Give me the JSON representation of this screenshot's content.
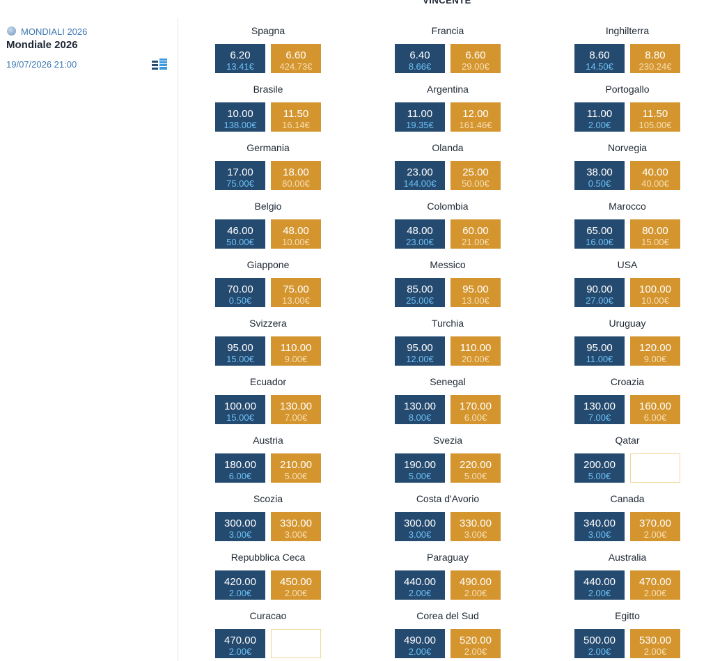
{
  "header": {
    "title": "VINCENTE"
  },
  "sidebar": {
    "competition": "MONDIALI 2026",
    "event": "Mondiale 2026",
    "datetime": "19/07/2026 21:00"
  },
  "runners": [
    {
      "name": "Spagna",
      "back": {
        "odds": "6.20",
        "amount": "13.41€"
      },
      "lay": {
        "odds": "6.60",
        "amount": "424.73€"
      }
    },
    {
      "name": "Francia",
      "back": {
        "odds": "6.40",
        "amount": "8.66€"
      },
      "lay": {
        "odds": "6.60",
        "amount": "29.00€"
      }
    },
    {
      "name": "Inghilterra",
      "back": {
        "odds": "8.60",
        "amount": "14.50€"
      },
      "lay": {
        "odds": "8.80",
        "amount": "230.24€"
      }
    },
    {
      "name": "Brasile",
      "back": {
        "odds": "10.00",
        "amount": "138.00€"
      },
      "lay": {
        "odds": "11.50",
        "amount": "16.14€"
      }
    },
    {
      "name": "Argentina",
      "back": {
        "odds": "11.00",
        "amount": "19.35€"
      },
      "lay": {
        "odds": "12.00",
        "amount": "161.46€"
      }
    },
    {
      "name": "Portogallo",
      "back": {
        "odds": "11.00",
        "amount": "2.00€"
      },
      "lay": {
        "odds": "11.50",
        "amount": "105.00€"
      }
    },
    {
      "name": "Germania",
      "back": {
        "odds": "17.00",
        "amount": "75.00€"
      },
      "lay": {
        "odds": "18.00",
        "amount": "80.00€"
      }
    },
    {
      "name": "Olanda",
      "back": {
        "odds": "23.00",
        "amount": "144.00€"
      },
      "lay": {
        "odds": "25.00",
        "amount": "50.00€"
      }
    },
    {
      "name": "Norvegia",
      "back": {
        "odds": "38.00",
        "amount": "0.50€"
      },
      "lay": {
        "odds": "40.00",
        "amount": "40.00€"
      }
    },
    {
      "name": "Belgio",
      "back": {
        "odds": "46.00",
        "amount": "50.00€"
      },
      "lay": {
        "odds": "48.00",
        "amount": "10.00€"
      }
    },
    {
      "name": "Colombia",
      "back": {
        "odds": "48.00",
        "amount": "23.00€"
      },
      "lay": {
        "odds": "60.00",
        "amount": "21.00€"
      }
    },
    {
      "name": "Marocco",
      "back": {
        "odds": "65.00",
        "amount": "16.00€"
      },
      "lay": {
        "odds": "80.00",
        "amount": "15.00€"
      }
    },
    {
      "name": "Giappone",
      "back": {
        "odds": "70.00",
        "amount": "0.50€"
      },
      "lay": {
        "odds": "75.00",
        "amount": "13.00€"
      }
    },
    {
      "name": "Messico",
      "back": {
        "odds": "85.00",
        "amount": "25.00€"
      },
      "lay": {
        "odds": "95.00",
        "amount": "13.00€"
      }
    },
    {
      "name": "USA",
      "back": {
        "odds": "90.00",
        "amount": "27.00€"
      },
      "lay": {
        "odds": "100.00",
        "amount": "10.00€"
      }
    },
    {
      "name": "Svizzera",
      "back": {
        "odds": "95.00",
        "amount": "15.00€"
      },
      "lay": {
        "odds": "110.00",
        "amount": "9.00€"
      }
    },
    {
      "name": "Turchia",
      "back": {
        "odds": "95.00",
        "amount": "12.00€"
      },
      "lay": {
        "odds": "110.00",
        "amount": "20.00€"
      }
    },
    {
      "name": "Uruguay",
      "back": {
        "odds": "95.00",
        "amount": "11.00€"
      },
      "lay": {
        "odds": "120.00",
        "amount": "9.00€"
      }
    },
    {
      "name": "Ecuador",
      "back": {
        "odds": "100.00",
        "amount": "15.00€"
      },
      "lay": {
        "odds": "130.00",
        "amount": "7.00€"
      }
    },
    {
      "name": "Senegal",
      "back": {
        "odds": "130.00",
        "amount": "8.00€"
      },
      "lay": {
        "odds": "170.00",
        "amount": "6.00€"
      }
    },
    {
      "name": "Croazia",
      "back": {
        "odds": "130.00",
        "amount": "7.00€"
      },
      "lay": {
        "odds": "160.00",
        "amount": "6.00€"
      }
    },
    {
      "name": "Austria",
      "back": {
        "odds": "180.00",
        "amount": "6.00€"
      },
      "lay": {
        "odds": "210.00",
        "amount": "5.00€"
      }
    },
    {
      "name": "Svezia",
      "back": {
        "odds": "190.00",
        "amount": "5.00€"
      },
      "lay": {
        "odds": "220.00",
        "amount": "5.00€"
      }
    },
    {
      "name": "Qatar",
      "back": {
        "odds": "200.00",
        "amount": "5.00€"
      },
      "lay": null
    },
    {
      "name": "Scozia",
      "back": {
        "odds": "300.00",
        "amount": "3.00€"
      },
      "lay": {
        "odds": "330.00",
        "amount": "3.00€"
      }
    },
    {
      "name": "Costa d'Avorio",
      "back": {
        "odds": "300.00",
        "amount": "3.00€"
      },
      "lay": {
        "odds": "330.00",
        "amount": "3.00€"
      }
    },
    {
      "name": "Canada",
      "back": {
        "odds": "340.00",
        "amount": "3.00€"
      },
      "lay": {
        "odds": "370.00",
        "amount": "2.00€"
      }
    },
    {
      "name": "Repubblica Ceca",
      "back": {
        "odds": "420.00",
        "amount": "2.00€"
      },
      "lay": {
        "odds": "450.00",
        "amount": "2.00€"
      }
    },
    {
      "name": "Paraguay",
      "back": {
        "odds": "440.00",
        "amount": "2.00€"
      },
      "lay": {
        "odds": "490.00",
        "amount": "2.00€"
      }
    },
    {
      "name": "Australia",
      "back": {
        "odds": "440.00",
        "amount": "2.00€"
      },
      "lay": {
        "odds": "470.00",
        "amount": "2.00€"
      }
    },
    {
      "name": "Curacao",
      "back": {
        "odds": "470.00",
        "amount": "2.00€"
      },
      "lay": null
    },
    {
      "name": "Corea del Sud",
      "back": {
        "odds": "490.00",
        "amount": "2.00€"
      },
      "lay": {
        "odds": "520.00",
        "amount": "2.00€"
      }
    },
    {
      "name": "Egitto",
      "back": {
        "odds": "500.00",
        "amount": "2.00€"
      },
      "lay": {
        "odds": "530.00",
        "amount": "2.00€"
      }
    }
  ]
}
